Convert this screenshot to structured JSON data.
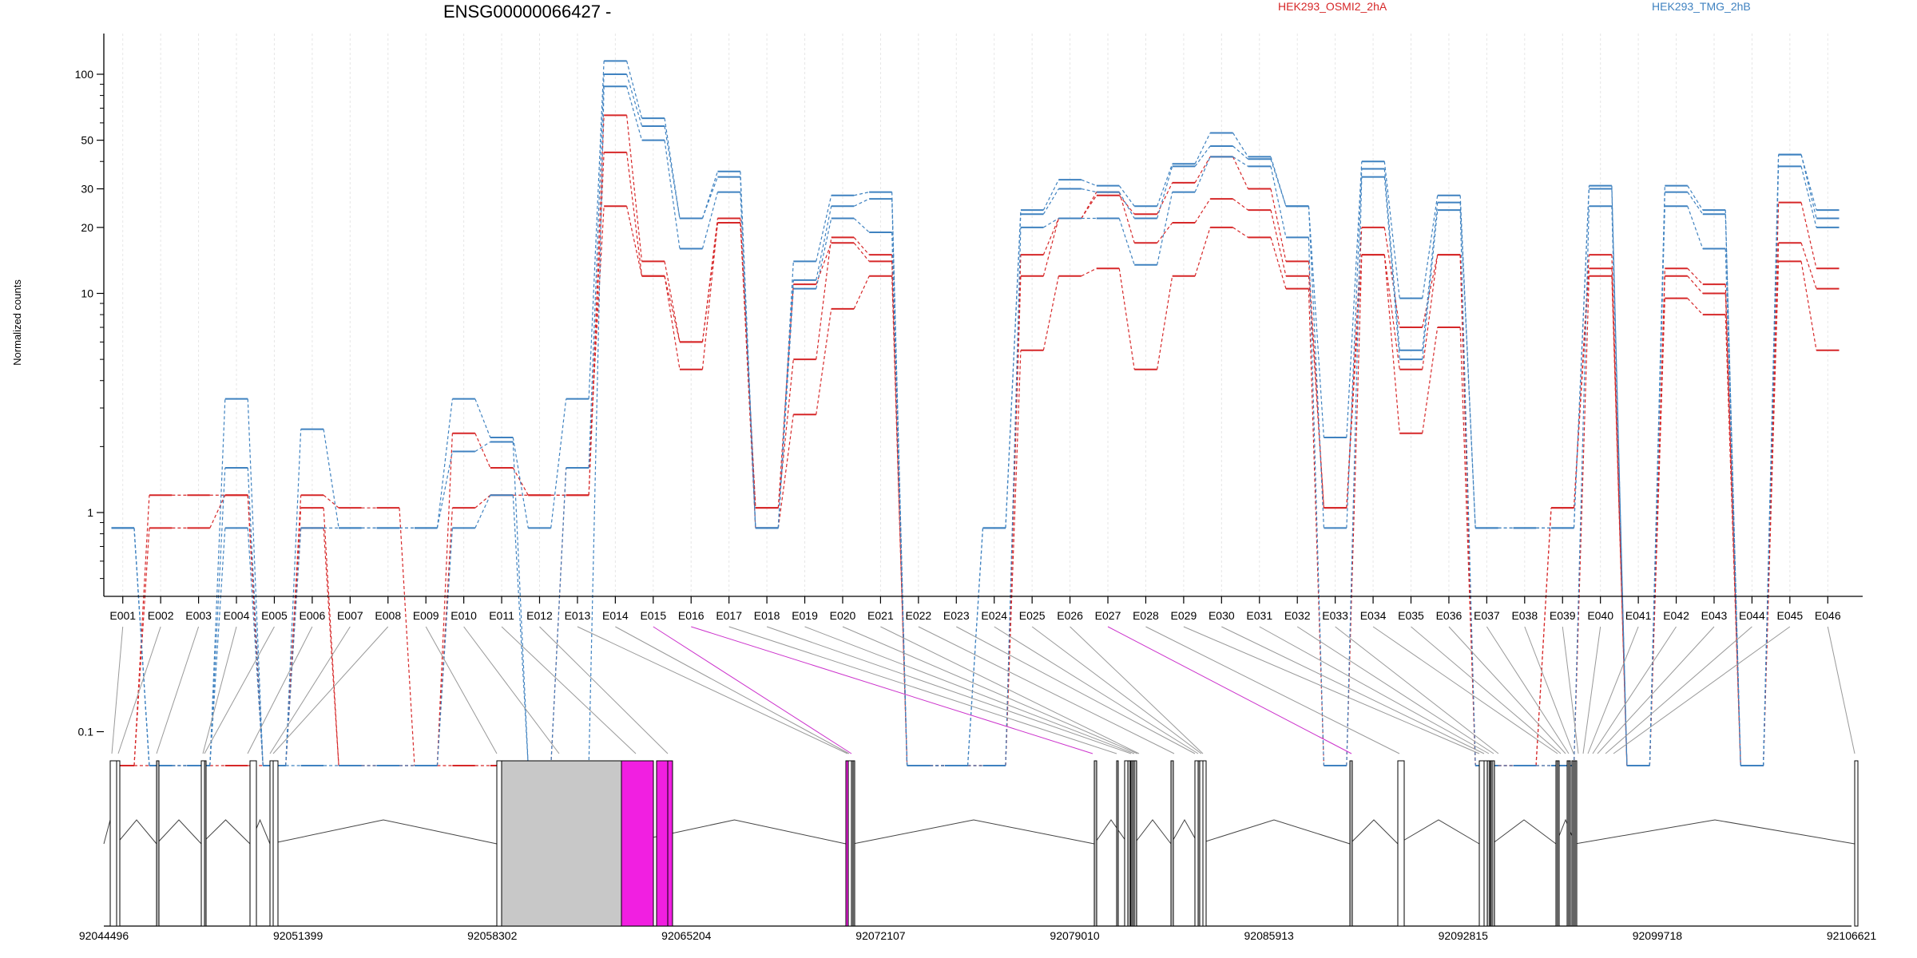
{
  "chart_data": {
    "type": "line",
    "title": "ENSG00000066427 -",
    "ylabel": "Normalized counts",
    "yscale": "log",
    "y_ticks": [
      0.1,
      1,
      10,
      20,
      30,
      50,
      100
    ],
    "grid": "vertical at each exon",
    "legend": [
      {
        "name": "HEK293_OSMI2_2hA",
        "color": "#d62728"
      },
      {
        "name": "HEK293_TMG_2hB",
        "color": "#3f82c0"
      }
    ],
    "categories": [
      "E001",
      "E002",
      "E003",
      "E004",
      "E005",
      "E006",
      "E007",
      "E008",
      "E009",
      "E010",
      "E011",
      "E012",
      "E013",
      "E014",
      "E015",
      "E016",
      "E017",
      "E018",
      "E019",
      "E020",
      "E021",
      "E022",
      "E023",
      "E024",
      "E025",
      "E026",
      "E027",
      "E028",
      "E029",
      "E030",
      "E031",
      "E032",
      "E033",
      "E034",
      "E035",
      "E036",
      "E037",
      "E038",
      "E039",
      "E040",
      "E041",
      "E042",
      "E043",
      "E044",
      "E045",
      "E046"
    ],
    "series": [
      {
        "name": "",
        "group": "HEK293_OSMI2_2hA",
        "color": "#d62728",
        "values": [
          0.07,
          1.2,
          1.2,
          1.2,
          0.07,
          1.2,
          1.05,
          1.05,
          0.07,
          1.05,
          1.2,
          1.2,
          1.2,
          65,
          14,
          6,
          21,
          1.05,
          5,
          18,
          15,
          0.07,
          0.07,
          0.07,
          15,
          22,
          28,
          23,
          32,
          42,
          30,
          14,
          1.05,
          20,
          7,
          15,
          0.07,
          0.07,
          1.05,
          15,
          0.07,
          13,
          11,
          0.07,
          26,
          13
        ]
      },
      {
        "name": "",
        "group": "HEK293_OSMI2_2hA",
        "color": "#d62728",
        "values": [
          0.07,
          0.85,
          0.85,
          1.2,
          0.07,
          1.05,
          0.07,
          0.07,
          0.07,
          2.3,
          1.6,
          1.2,
          1.2,
          44,
          12,
          6,
          22,
          1.05,
          11,
          17,
          14,
          0.07,
          0.07,
          0.07,
          12,
          22,
          29,
          17,
          21,
          27,
          24,
          12,
          1.05,
          15,
          4.5,
          15,
          0.07,
          0.07,
          1.05,
          13,
          0.07,
          12,
          10,
          0.07,
          17,
          10.5
        ]
      },
      {
        "name": "",
        "group": "HEK293_OSMI2_2hA",
        "color": "#d62728",
        "values": [
          0.07,
          0.07,
          0.07,
          0.07,
          0.07,
          0.85,
          0.07,
          0.07,
          0.07,
          0.07,
          0.07,
          0.07,
          1.6,
          25,
          12,
          4.5,
          21,
          0.85,
          2.8,
          8.5,
          12,
          0.07,
          0.07,
          0.07,
          5.5,
          12,
          13,
          4.5,
          12,
          20,
          18,
          10.5,
          0.07,
          15,
          2.3,
          7,
          0.07,
          0.07,
          0.07,
          12,
          0.07,
          9.5,
          8,
          0.07,
          14,
          5.5
        ]
      },
      {
        "name": "",
        "group": "HEK293_TMG_2hB",
        "color": "#3f82c0",
        "values": [
          0.85,
          0.07,
          0.07,
          3.3,
          0.07,
          2.4,
          0.85,
          0.85,
          0.85,
          3.3,
          2.2,
          0.85,
          3.3,
          115,
          63,
          22,
          36,
          0.85,
          14,
          28,
          29,
          0.07,
          0.07,
          0.85,
          24,
          33,
          31,
          25,
          39,
          54,
          42,
          25,
          2.2,
          40,
          9.5,
          28,
          0.85,
          0.85,
          0.85,
          31,
          0.07,
          31,
          24,
          0.07,
          43,
          24
        ]
      },
      {
        "name": "",
        "group": "HEK293_TMG_2hB",
        "color": "#3f82c0",
        "values": [
          0.85,
          0.07,
          0.07,
          1.6,
          0.07,
          0.85,
          0.85,
          0.85,
          0.85,
          1.9,
          2.1,
          0.07,
          1.6,
          100,
          58,
          22,
          34,
          0.85,
          11.5,
          25,
          27,
          0.07,
          0.07,
          0.85,
          23,
          30,
          29,
          22,
          38,
          47,
          41,
          25,
          0.85,
          37,
          5.5,
          26,
          0.85,
          0.85,
          0.85,
          30,
          0.07,
          29,
          23,
          0.07,
          43,
          22
        ]
      },
      {
        "name": "",
        "group": "HEK293_TMG_2hB",
        "color": "#3f82c0",
        "values": [
          0.85,
          0.07,
          0.07,
          0.85,
          0.07,
          0.07,
          0.07,
          0.07,
          0.07,
          0.85,
          1.2,
          0.07,
          0.07,
          88,
          50,
          16,
          29,
          0.85,
          10.5,
          22,
          19,
          0.07,
          0.07,
          0.07,
          20,
          22,
          22,
          13.5,
          29,
          42,
          38,
          18,
          0.07,
          34,
          5,
          24,
          0.07,
          0.07,
          0.07,
          25,
          0.07,
          25,
          16,
          0.07,
          38,
          20
        ]
      }
    ],
    "gene_model": {
      "coordinate_labels": [
        "92044496",
        "92051399",
        "92058302",
        "92065204",
        "92072107",
        "92079010",
        "92085913",
        "92092815",
        "92099718",
        "92106621"
      ],
      "highlighted_exons": [
        "E015",
        "E016",
        "E027"
      ]
    }
  }
}
